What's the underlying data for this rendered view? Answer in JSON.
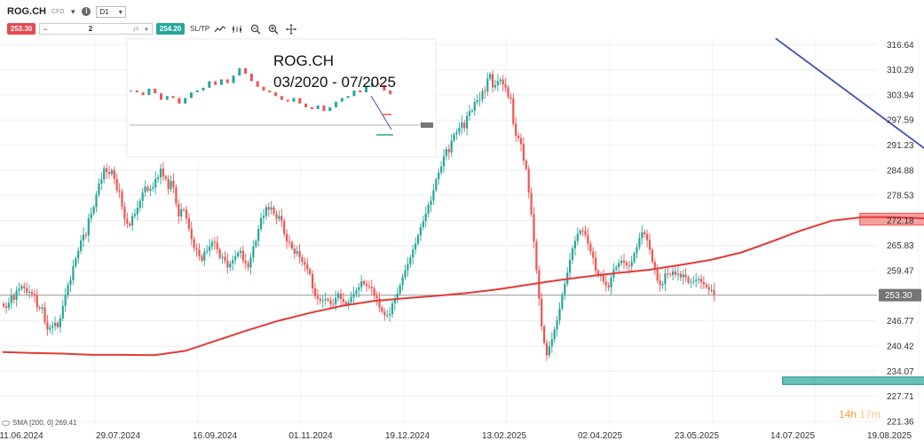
{
  "toolbar": {
    "symbol": "ROG.CH",
    "symbol_type": "CFD",
    "info_icon_label": "i",
    "timeframe": "D1",
    "sell_price": "253.30",
    "quantity": "2",
    "buy_price": "254.20",
    "sltp_label": "SL/TP",
    "qty_minus": "−",
    "qty_plus": "+",
    "icons": [
      "chart-type-icon",
      "indicators-icon",
      "zoom-out-icon",
      "zoom-in-icon",
      "crosshair-icon"
    ]
  },
  "annotation": {
    "line1": "ROG.CH",
    "line2": "03/2020 - 07/2025"
  },
  "timer": {
    "hours": "14h",
    "minutes": "17m"
  },
  "indicator_legend": {
    "text": "SMA [200, 0]  269.41"
  },
  "price_badge": "253.30",
  "colors": {
    "up": "#26a69a",
    "down": "#ef5350",
    "sma": "#e53935",
    "trendline": "#3f51b5",
    "resistance_zone": "#ef5350",
    "support_zone": "#26a69a",
    "sell": "#e8474c",
    "buy": "#26a69a"
  },
  "chart_data": {
    "type": "candlestick",
    "symbol": "ROG.CH",
    "timeframe": "D1",
    "y_ticks": [
      "316.64",
      "310.29",
      "303.94",
      "297.59",
      "291.23",
      "284.88",
      "278.53",
      "272.18",
      "265.83",
      "259.47",
      "253.30",
      "246.77",
      "240.42",
      "234.07",
      "227.71",
      "221.36"
    ],
    "x_ticks": [
      "11.06.2024",
      "29.07.2024",
      "16.09.2024",
      "01.11.2024",
      "19.12.2024",
      "13.02.2025",
      "02.04.2025",
      "23.05.2025",
      "14.07.2025",
      "19.08.2025"
    ],
    "ylim": [
      220.0,
      318.5
    ],
    "current_price": 253.3,
    "sma_200_last": 269.41,
    "closes": [
      250.5,
      250.1,
      251.3,
      253.2,
      252.1,
      254.4,
      254.9,
      255.6,
      255.1,
      254.0,
      254.1,
      253.6,
      253.3,
      250.2,
      249.9,
      250.2,
      246.5,
      244.6,
      245.1,
      245.5,
      246.3,
      245.2,
      247.4,
      250.6,
      253.3,
      255.9,
      257.1,
      260.6,
      262.6,
      264.5,
      267.1,
      268.6,
      268.4,
      272.7,
      273.9,
      275.6,
      278.7,
      281.5,
      282.5,
      285.4,
      284.4,
      283.9,
      284.9,
      282.7,
      279.8,
      279.5,
      275.7,
      272.6,
      271.4,
      270.9,
      273.3,
      273.8,
      275.4,
      277.1,
      279.3,
      280.7,
      279.7,
      280.2,
      280.5,
      282.7,
      283.1,
      285.3,
      283.3,
      282.7,
      280.1,
      282.2,
      280.6,
      276.4,
      273.2,
      275.0,
      274.9,
      272.7,
      270.1,
      267.5,
      265.2,
      264.8,
      263.2,
      262.0,
      264.3,
      264.6,
      265.6,
      266.8,
      266.6,
      264.9,
      262.7,
      263.0,
      262.0,
      260.3,
      261.3,
      262.2,
      263.1,
      264.0,
      264.5,
      262.0,
      261.4,
      260.3,
      262.8,
      265.6,
      267.0,
      270.0,
      272.8,
      273.3,
      275.6,
      274.9,
      275.5,
      273.9,
      272.6,
      273.3,
      272.0,
      268.8,
      266.8,
      266.7,
      265.1,
      263.8,
      264.4,
      262.9,
      261.7,
      261.1,
      259.8,
      258.6,
      255.0,
      253.0,
      252.4,
      251.9,
      252.0,
      252.3,
      252.0,
      251.1,
      251.0,
      252.6,
      253.7,
      252.3,
      251.6,
      250.9,
      251.5,
      252.8,
      253.6,
      254.5,
      255.3,
      256.8,
      256.1,
      255.6,
      255.4,
      255.0,
      253.1,
      252.5,
      250.2,
      249.1,
      248.2,
      248.2,
      248.5,
      251.2,
      252.3,
      253.7,
      255.8,
      257.8,
      259.6,
      261.1,
      262.8,
      264.8,
      266.3,
      268.4,
      270.5,
      272.0,
      273.9,
      276.1,
      277.2,
      279.8,
      282.6,
      284.3,
      285.8,
      288.4,
      290.2,
      289.4,
      292.4,
      294.0,
      294.4,
      295.6,
      296.9,
      295.5,
      298.6,
      299.8,
      300.0,
      302.1,
      302.6,
      302.8,
      304.9,
      304.8,
      308.0,
      309.2,
      305.8,
      306.4,
      307.4,
      307.8,
      306.6,
      305.8,
      303.4,
      303.0,
      296.6,
      293.6,
      293.0,
      291.5,
      287.3,
      285.2,
      279.2,
      273.8,
      266.8,
      259.6,
      252.4,
      245.4,
      241.2,
      238.1,
      240.3,
      242.1,
      244.6,
      246.9,
      249.9,
      253.5,
      256.1,
      259.0,
      262.2,
      265.1,
      267.0,
      268.8,
      269.6,
      269.5,
      268.5,
      266.3,
      264.3,
      262.8,
      259.5,
      258.2,
      258.3,
      256.7,
      255.8,
      255.3,
      257.7,
      259.8,
      260.4,
      261.4,
      262.0,
      261.5,
      260.8,
      260.6,
      261.7,
      263.9,
      265.4,
      267.7,
      269.2,
      268.7,
      267.2,
      264.8,
      261.7,
      259.7,
      257.0,
      255.8,
      256.1,
      258.8,
      258.6,
      258.4,
      259.3,
      258.5,
      258.7,
      257.8,
      258.5,
      257.8,
      256.5,
      256.6,
      256.8,
      257.1,
      257.4,
      256.6,
      256.0,
      255.3,
      254.6,
      254.6,
      253.3
    ],
    "sma200": [
      [
        0,
        238.9
      ],
      [
        11,
        238.7
      ],
      [
        23,
        238.5
      ],
      [
        35,
        238.2
      ],
      [
        47,
        238.2
      ],
      [
        59,
        238.1
      ],
      [
        71,
        239.2
      ],
      [
        83,
        241.8
      ],
      [
        95,
        244.4
      ],
      [
        107,
        246.8
      ],
      [
        120,
        248.9
      ],
      [
        132,
        250.6
      ],
      [
        144,
        251.8
      ],
      [
        156,
        252.5
      ],
      [
        168,
        253.1
      ],
      [
        180,
        253.8
      ],
      [
        192,
        254.7
      ],
      [
        203,
        255.8
      ],
      [
        215,
        257.0
      ],
      [
        227,
        258.0
      ],
      [
        239,
        258.9
      ],
      [
        251,
        259.7
      ],
      [
        263,
        260.9
      ],
      [
        275,
        262.2
      ],
      [
        287,
        264.1
      ],
      [
        299,
        266.9
      ],
      [
        310,
        269.6
      ],
      [
        322,
        272.1
      ],
      [
        334,
        273.0
      ],
      [
        346,
        273.0
      ],
      [
        358,
        272.7
      ],
      [
        370,
        271.9
      ],
      [
        382,
        271.2
      ],
      [
        394,
        270.5
      ],
      [
        406,
        270.0
      ],
      [
        418,
        269.7
      ],
      [
        430,
        269.3
      ]
    ],
    "trendline": [
      [
        300.3,
        318.2
      ],
      [
        438.0,
        252.0
      ]
    ],
    "resistance_zone": {
      "from": 333,
      "to": 452,
      "ymin": 271.0,
      "ymax": 274.0
    },
    "support_zone": {
      "from": 303,
      "to": 458,
      "ymin": 230.7,
      "ymax": 232.6
    }
  }
}
